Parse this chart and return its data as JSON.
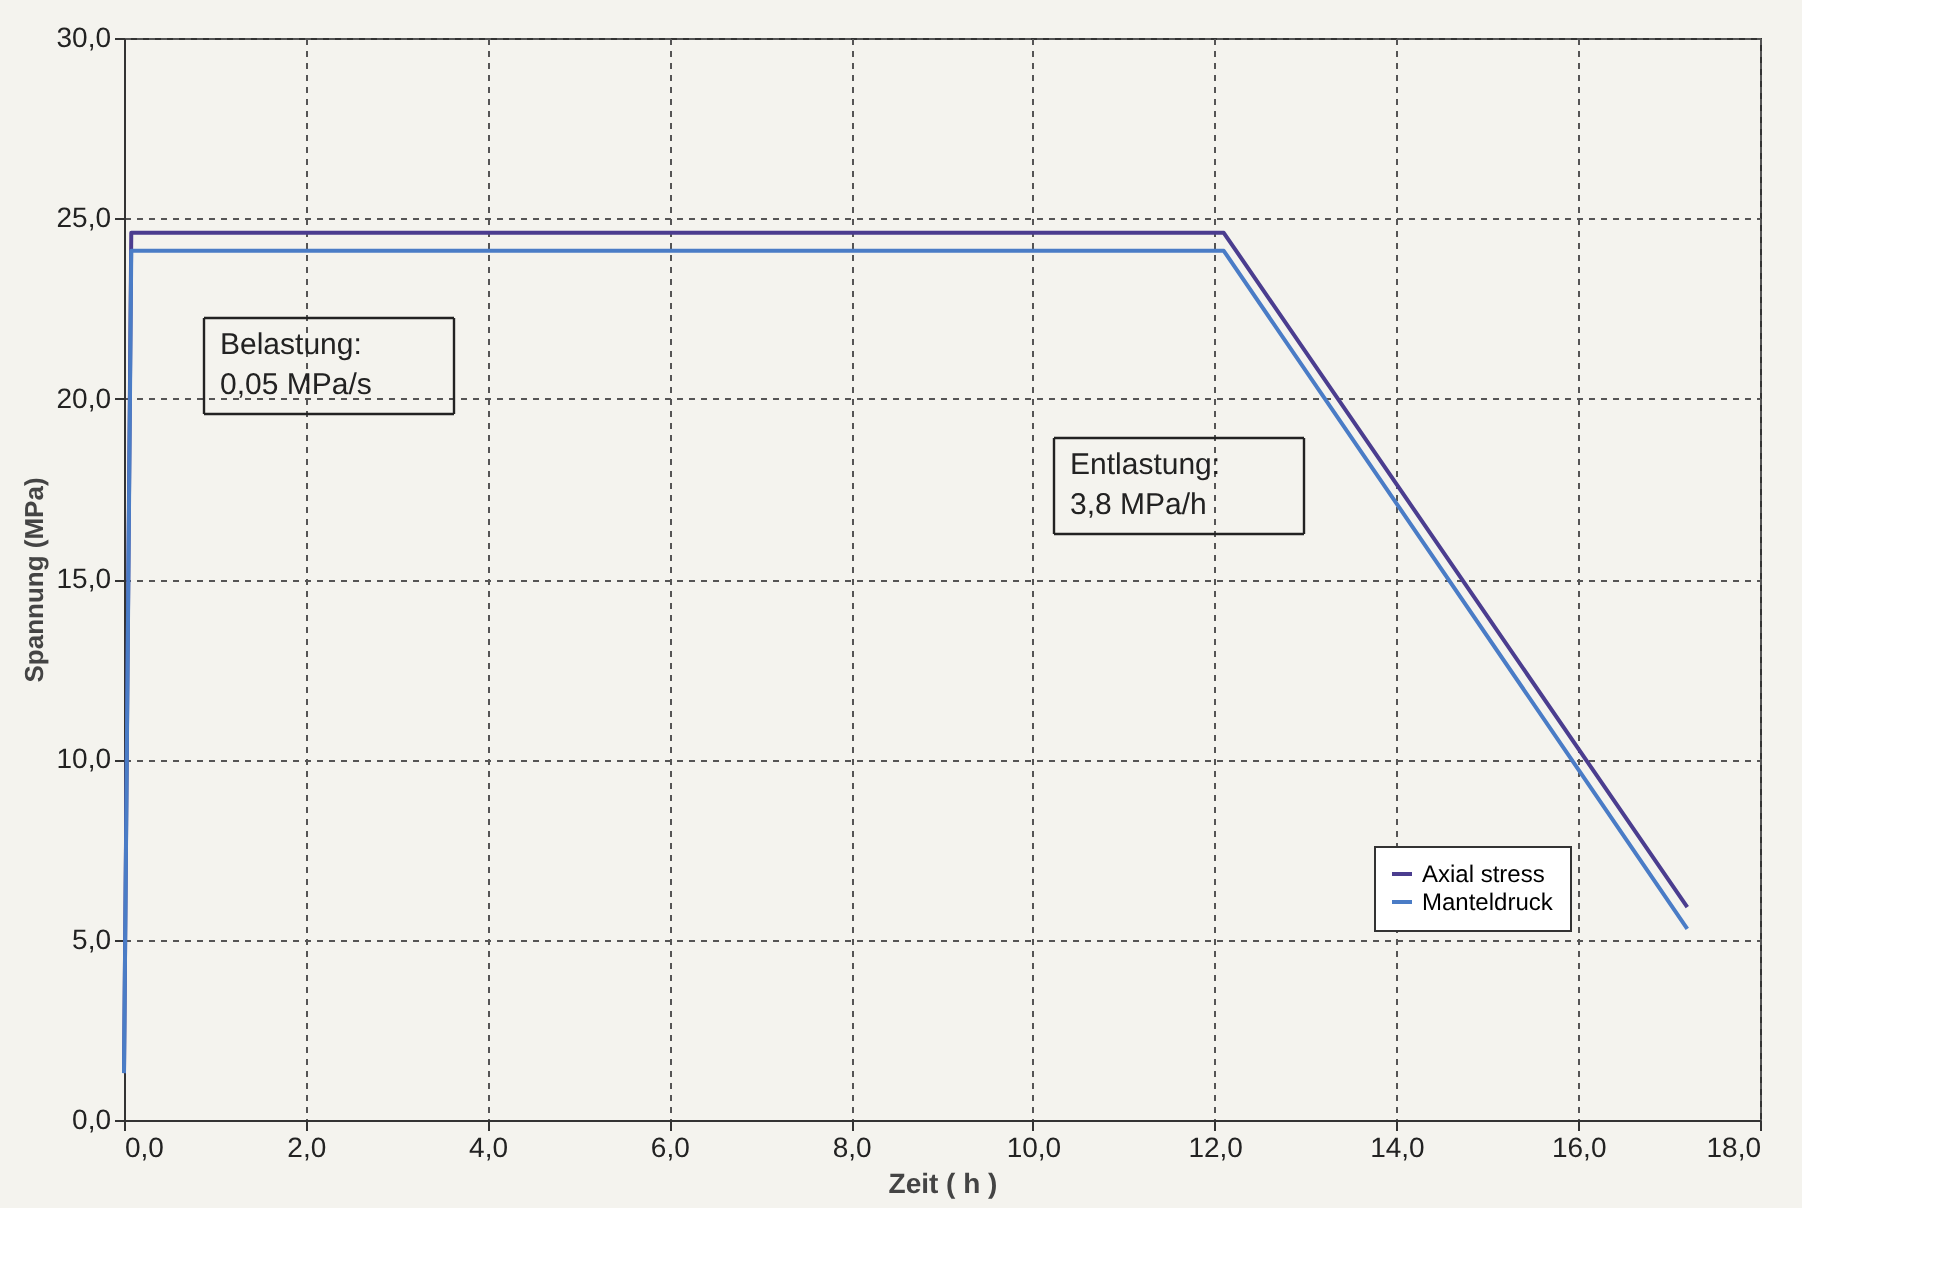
{
  "chart_data": {
    "type": "line",
    "xlabel": "Zeit ( h )",
    "ylabel": "Spannung (MPa)",
    "series": [
      {
        "name": "Axial stress",
        "color": "#4b3d8f",
        "x": [
          0.0,
          0.08,
          12.1,
          17.2
        ],
        "values": [
          1.3,
          24.6,
          24.6,
          5.9
        ]
      },
      {
        "name": "Manteldruck",
        "color": "#4a7cc6",
        "x": [
          0.0,
          0.08,
          12.1,
          17.2
        ],
        "values": [
          1.3,
          24.1,
          24.1,
          5.3
        ]
      }
    ],
    "xlim": [
      0,
      18
    ],
    "ylim": [
      0,
      30
    ],
    "xticks": [
      {
        "value": 0,
        "label": "0,0"
      },
      {
        "value": 2,
        "label": "2,0"
      },
      {
        "value": 4,
        "label": "4,0"
      },
      {
        "value": 6,
        "label": "6,0"
      },
      {
        "value": 8,
        "label": "8,0"
      },
      {
        "value": 10,
        "label": "10,0"
      },
      {
        "value": 12,
        "label": "12,0"
      },
      {
        "value": 14,
        "label": "14,0"
      },
      {
        "value": 16,
        "label": "16,0"
      },
      {
        "value": 18,
        "label": "18,0"
      }
    ],
    "yticks": [
      {
        "value": 0,
        "label": "0,0"
      },
      {
        "value": 5,
        "label": "5,0"
      },
      {
        "value": 10,
        "label": "10,0"
      },
      {
        "value": 15,
        "label": "15,0"
      },
      {
        "value": 20,
        "label": "20,0"
      },
      {
        "value": 25,
        "label": "25,0"
      },
      {
        "value": 30,
        "label": "30,0"
      }
    ],
    "annotations": [
      "Belastung:\n0,05 MPa/s",
      "Entlastung:\n3,8 MPa/h"
    ],
    "grid": true,
    "legend": "bottom right",
    "marker": "none",
    "line_style": "solid"
  }
}
